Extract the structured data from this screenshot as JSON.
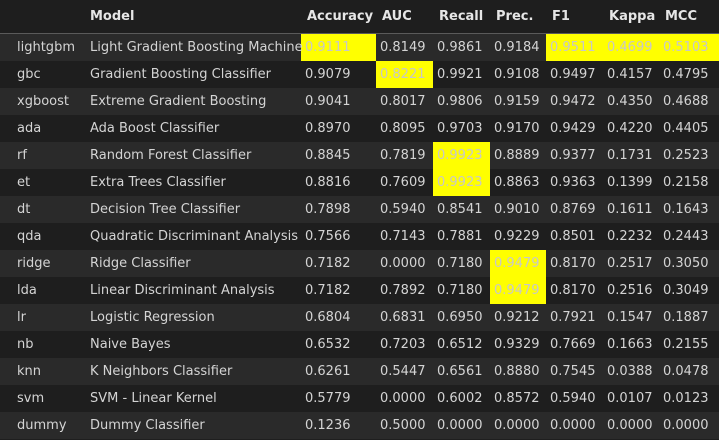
{
  "highlight_color": "#ffff00",
  "columns": [
    "",
    "Model",
    "Accuracy",
    "AUC",
    "Recall",
    "Prec.",
    "F1",
    "Kappa",
    "MCC"
  ],
  "rows": [
    {
      "cells": [
        "lightgbm",
        "Light Gradient Boosting Machine",
        "0.9111",
        "0.8149",
        "0.9861",
        "0.9184",
        "0.9511",
        "0.4699",
        "0.5103"
      ],
      "highlighted": [
        2,
        6,
        7,
        8
      ]
    },
    {
      "cells": [
        "gbc",
        "Gradient Boosting Classifier",
        "0.9079",
        "0.8221",
        "0.9921",
        "0.9108",
        "0.9497",
        "0.4157",
        "0.4795"
      ],
      "highlighted": [
        3
      ]
    },
    {
      "cells": [
        "xgboost",
        "Extreme Gradient Boosting",
        "0.9041",
        "0.8017",
        "0.9806",
        "0.9159",
        "0.9472",
        "0.4350",
        "0.4688"
      ],
      "highlighted": []
    },
    {
      "cells": [
        "ada",
        "Ada Boost Classifier",
        "0.8970",
        "0.8095",
        "0.9703",
        "0.9170",
        "0.9429",
        "0.4220",
        "0.4405"
      ],
      "highlighted": []
    },
    {
      "cells": [
        "rf",
        "Random Forest Classifier",
        "0.8845",
        "0.7819",
        "0.9923",
        "0.8889",
        "0.9377",
        "0.1731",
        "0.2523"
      ],
      "highlighted": [
        4
      ]
    },
    {
      "cells": [
        "et",
        "Extra Trees Classifier",
        "0.8816",
        "0.7609",
        "0.9923",
        "0.8863",
        "0.9363",
        "0.1399",
        "0.2158"
      ],
      "highlighted": [
        4
      ]
    },
    {
      "cells": [
        "dt",
        "Decision Tree Classifier",
        "0.7898",
        "0.5940",
        "0.8541",
        "0.9010",
        "0.8769",
        "0.1611",
        "0.1643"
      ],
      "highlighted": []
    },
    {
      "cells": [
        "qda",
        "Quadratic Discriminant Analysis",
        "0.7566",
        "0.7143",
        "0.7881",
        "0.9229",
        "0.8501",
        "0.2232",
        "0.2443"
      ],
      "highlighted": []
    },
    {
      "cells": [
        "ridge",
        "Ridge Classifier",
        "0.7182",
        "0.0000",
        "0.7180",
        "0.9479",
        "0.8170",
        "0.2517",
        "0.3050"
      ],
      "highlighted": [
        5
      ]
    },
    {
      "cells": [
        "lda",
        "Linear Discriminant Analysis",
        "0.7182",
        "0.7892",
        "0.7180",
        "0.9479",
        "0.8170",
        "0.2516",
        "0.3049"
      ],
      "highlighted": [
        5
      ]
    },
    {
      "cells": [
        "lr",
        "Logistic Regression",
        "0.6804",
        "0.6831",
        "0.6950",
        "0.9212",
        "0.7921",
        "0.1547",
        "0.1887"
      ],
      "highlighted": []
    },
    {
      "cells": [
        "nb",
        "Naive Bayes",
        "0.6532",
        "0.7203",
        "0.6512",
        "0.9329",
        "0.7669",
        "0.1663",
        "0.2155"
      ],
      "highlighted": []
    },
    {
      "cells": [
        "knn",
        "K Neighbors Classifier",
        "0.6261",
        "0.5447",
        "0.6561",
        "0.8880",
        "0.7545",
        "0.0388",
        "0.0478"
      ],
      "highlighted": []
    },
    {
      "cells": [
        "svm",
        "SVM - Linear Kernel",
        "0.5779",
        "0.0000",
        "0.6002",
        "0.8572",
        "0.5940",
        "0.0107",
        "0.0123"
      ],
      "highlighted": []
    },
    {
      "cells": [
        "dummy",
        "Dummy Classifier",
        "0.1236",
        "0.5000",
        "0.0000",
        "0.0000",
        "0.0000",
        "0.0000",
        "0.0000"
      ],
      "highlighted": []
    }
  ]
}
